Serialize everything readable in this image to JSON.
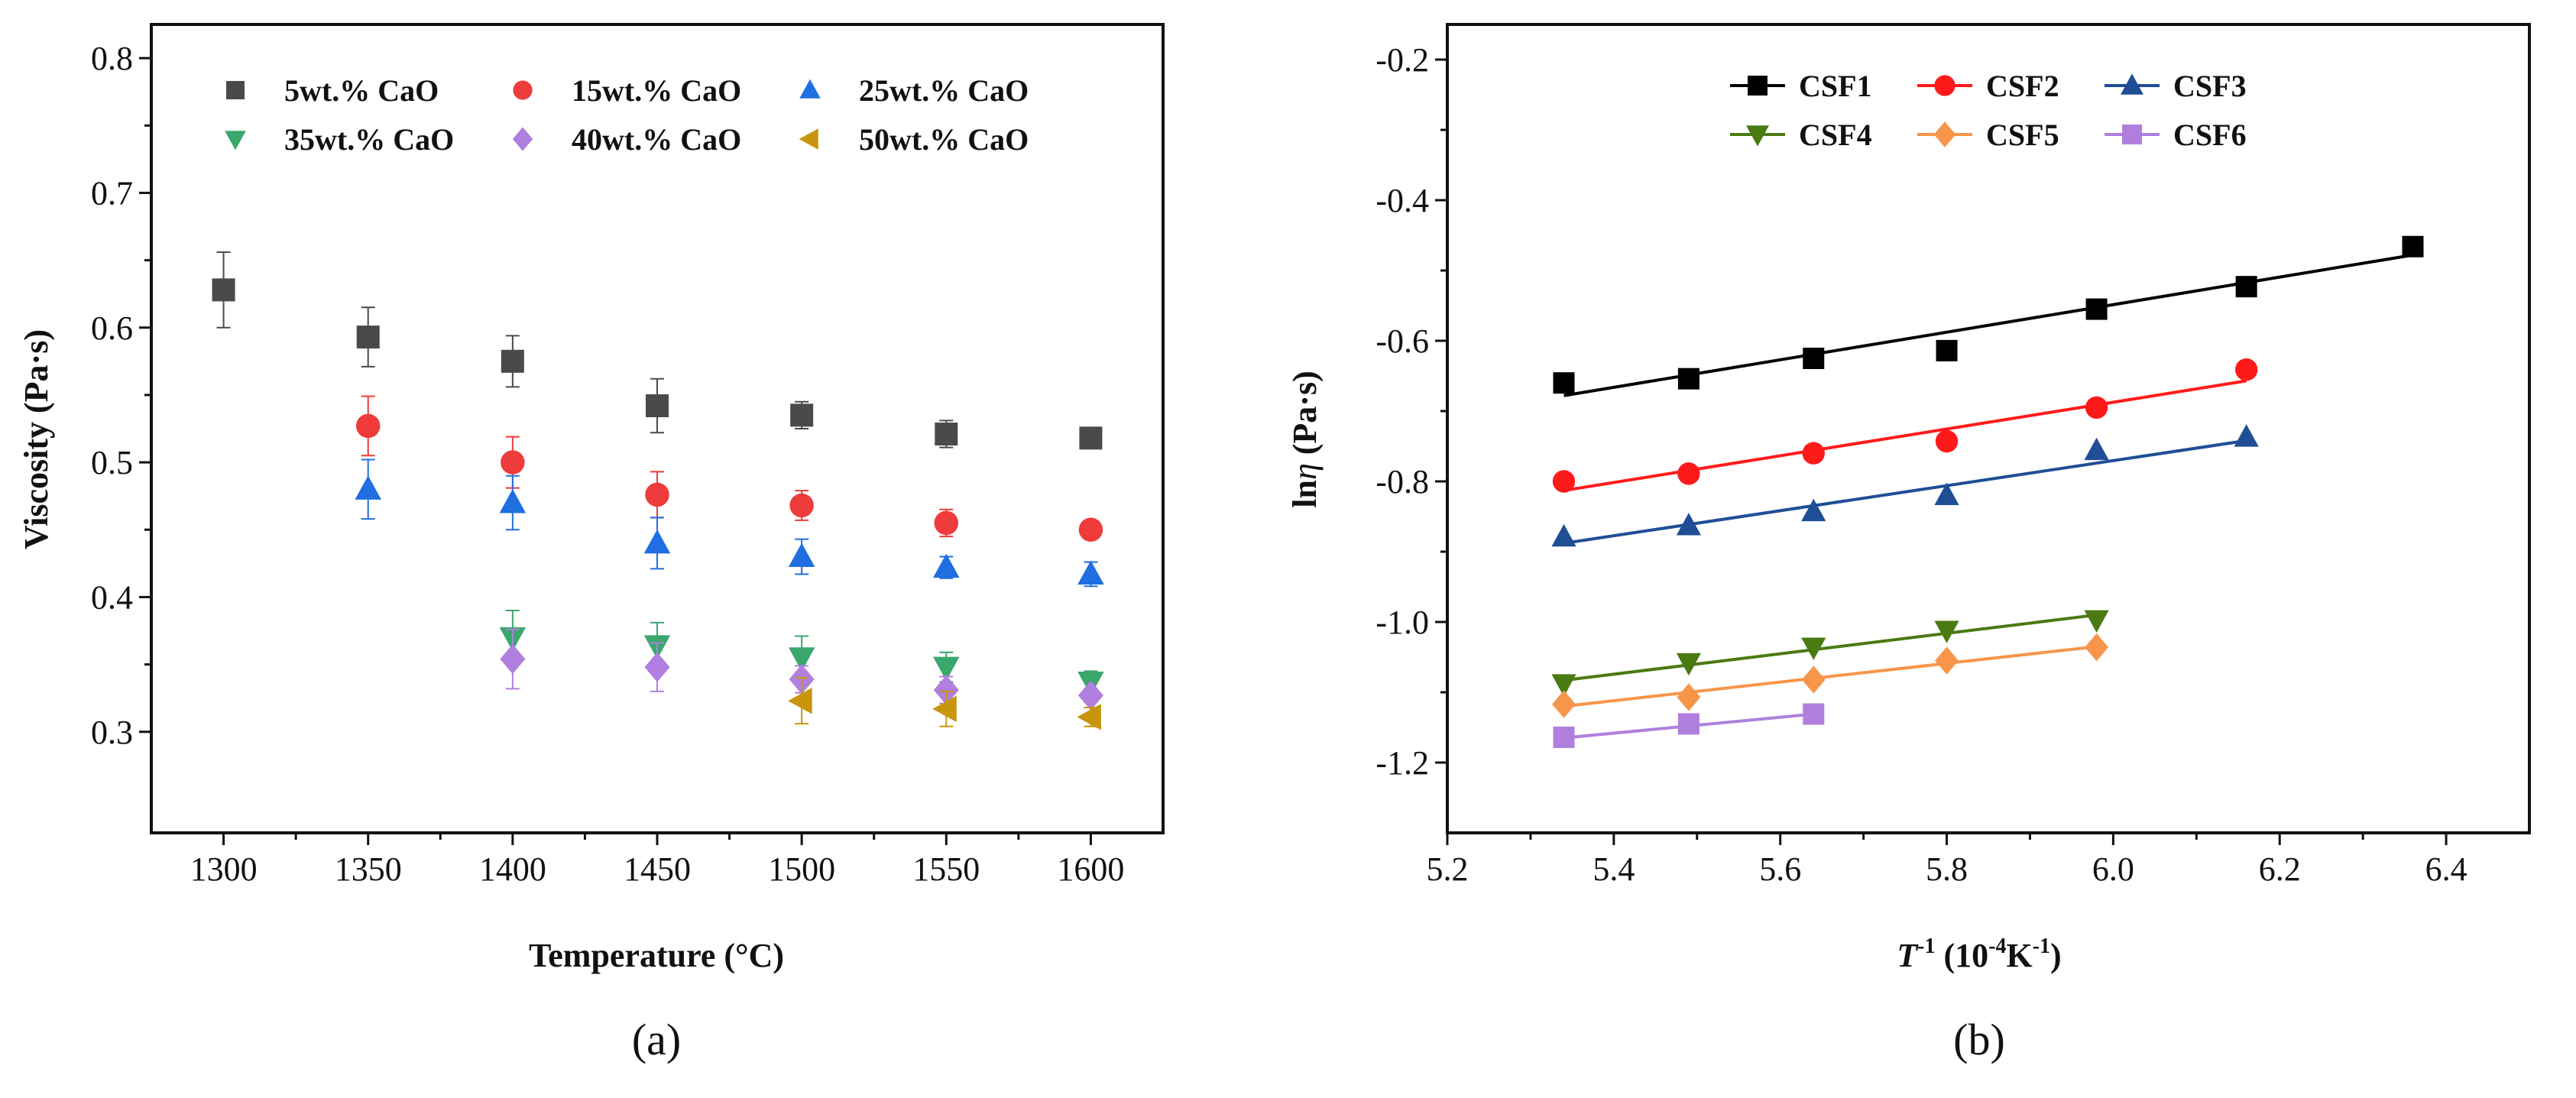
{
  "chart_data": [
    {
      "type": "scatter",
      "panel_label": "(a)",
      "xlabel": "Temperature (°C)",
      "ylabel": "Viscosity (Pa·s)",
      "xlim": [
        1275,
        1625
      ],
      "ylim": [
        0.225,
        0.825
      ],
      "xticks": [
        1300,
        1350,
        1400,
        1450,
        1500,
        1550,
        1600
      ],
      "xtick_labels": [
        "1300",
        "1350",
        "1400",
        "1450",
        "1500",
        "1550",
        "1600"
      ],
      "yticks": [
        0.3,
        0.4,
        0.5,
        0.6,
        0.7,
        0.8
      ],
      "ytick_labels": [
        "0.3",
        "0.4",
        "0.5",
        "0.6",
        "0.7",
        "0.8"
      ],
      "grid": false,
      "legend": "top",
      "series": [
        {
          "name": "5wt.% CaO",
          "marker": "square",
          "color": "#4a4a4a",
          "x": [
            1300,
            1350,
            1400,
            1450,
            1500,
            1550,
            1600
          ],
          "y": [
            0.628,
            0.593,
            0.575,
            0.542,
            0.535,
            0.521,
            0.518
          ],
          "err": [
            0.028,
            0.022,
            0.019,
            0.02,
            0.01,
            0.01,
            0.007
          ]
        },
        {
          "name": "15wt.% CaO",
          "marker": "circle",
          "color": "#ee3b3b",
          "x": [
            1350,
            1400,
            1450,
            1500,
            1550,
            1600
          ],
          "y": [
            0.527,
            0.5,
            0.476,
            0.468,
            0.455,
            0.45
          ],
          "err": [
            0.022,
            0.019,
            0.017,
            0.011,
            0.01,
            0.005
          ]
        },
        {
          "name": "25wt.% CaO",
          "marker": "triangle-up",
          "color": "#1f6fe0",
          "x": [
            1350,
            1400,
            1450,
            1500,
            1550,
            1600
          ],
          "y": [
            0.48,
            0.47,
            0.44,
            0.43,
            0.422,
            0.417
          ],
          "err": [
            0.022,
            0.02,
            0.019,
            0.013,
            0.008,
            0.009
          ]
        },
        {
          "name": "35wt.% CaO",
          "marker": "triangle-down",
          "color": "#3aa76d",
          "x": [
            1400,
            1450,
            1500,
            1550,
            1600
          ],
          "y": [
            0.37,
            0.364,
            0.355,
            0.348,
            0.337
          ],
          "err": [
            0.02,
            0.017,
            0.016,
            0.011,
            0.008
          ]
        },
        {
          "name": "40wt.% CaO",
          "marker": "diamond",
          "color": "#b07fe0",
          "x": [
            1400,
            1450,
            1500,
            1550,
            1600
          ],
          "y": [
            0.354,
            0.348,
            0.339,
            0.331,
            0.327
          ],
          "err": [
            0.022,
            0.018,
            0.01,
            0.01,
            0.005
          ]
        },
        {
          "name": "50wt.% CaO",
          "marker": "triangle-left",
          "color": "#c8960c",
          "x": [
            1500,
            1550,
            1600
          ],
          "y": [
            0.323,
            0.317,
            0.311
          ],
          "err": [
            0.017,
            0.013,
            0.007
          ]
        }
      ]
    },
    {
      "type": "line",
      "panel_label": "(b)",
      "xlabel_main": "T",
      "xlabel_sup1": "-1",
      "xlabel_rest": " (10",
      "xlabel_sup2": "-4",
      "xlabel_k": "K",
      "xlabel_sup3": "-1",
      "xlabel_end": ")",
      "ylabel_main": "ln",
      "ylabel_eta": "η",
      "ylabel_unit": " (Pa·s)",
      "xlim": [
        5.2,
        6.5
      ],
      "ylim": [
        -1.3,
        -0.15
      ],
      "xticks": [
        5.2,
        5.4,
        5.6,
        5.8,
        6.0,
        6.2,
        6.4
      ],
      "xtick_labels": [
        "5.2",
        "5.4",
        "5.6",
        "5.8",
        "6.0",
        "6.2",
        "6.4"
      ],
      "yticks": [
        -1.2,
        -1.0,
        -0.8,
        -0.6,
        -0.4,
        -0.2
      ],
      "ytick_labels": [
        "-1.2",
        "-1.0",
        "-0.8",
        "-0.6",
        "-0.4",
        "-0.2"
      ],
      "grid": false,
      "legend": "top",
      "series": [
        {
          "name": "CSF1",
          "marker": "square",
          "color": "#000000",
          "x": [
            5.34,
            5.49,
            5.64,
            5.8,
            5.98,
            6.16,
            6.36
          ],
          "y": [
            -0.66,
            -0.654,
            -0.625,
            -0.614,
            -0.555,
            -0.523,
            -0.466
          ],
          "fit": [
            [
              5.34,
              -0.678
            ],
            [
              6.36,
              -0.478
            ]
          ]
        },
        {
          "name": "CSF2",
          "marker": "circle",
          "color": "#ff1a1a",
          "x": [
            5.34,
            5.49,
            5.64,
            5.8,
            5.98,
            6.16
          ],
          "y": [
            -0.8,
            -0.789,
            -0.76,
            -0.743,
            -0.695,
            -0.641
          ],
          "fit": [
            [
              5.34,
              -0.813
            ],
            [
              6.16,
              -0.657
            ]
          ]
        },
        {
          "name": "CSF3",
          "marker": "triangle-up",
          "color": "#1f4e96",
          "x": [
            5.34,
            5.49,
            5.64,
            5.8,
            5.98,
            6.16
          ],
          "y": [
            -0.879,
            -0.863,
            -0.843,
            -0.82,
            -0.756,
            -0.737
          ],
          "fit": [
            [
              5.34,
              -0.888
            ],
            [
              6.16,
              -0.742
            ]
          ]
        },
        {
          "name": "CSF4",
          "marker": "triangle-down",
          "color": "#4a7a12",
          "x": [
            5.34,
            5.49,
            5.64,
            5.8,
            5.98
          ],
          "y": [
            -1.088,
            -1.058,
            -1.036,
            -1.012,
            -0.997
          ],
          "fit": [
            [
              5.34,
              -1.083
            ],
            [
              5.98,
              -0.99
            ]
          ]
        },
        {
          "name": "CSF5",
          "marker": "diamond",
          "color": "#f7954a",
          "x": [
            5.34,
            5.49,
            5.64,
            5.8,
            5.98
          ],
          "y": [
            -1.117,
            -1.107,
            -1.082,
            -1.055,
            -1.036
          ],
          "fit": [
            [
              5.34,
              -1.12
            ],
            [
              5.98,
              -1.035
            ]
          ]
        },
        {
          "name": "CSF6",
          "marker": "square",
          "color": "#b07fdd",
          "x": [
            5.34,
            5.49,
            5.64
          ],
          "y": [
            -1.164,
            -1.145,
            -1.131
          ],
          "fit": [
            [
              5.34,
              -1.165
            ],
            [
              5.64,
              -1.131
            ]
          ]
        }
      ]
    }
  ]
}
